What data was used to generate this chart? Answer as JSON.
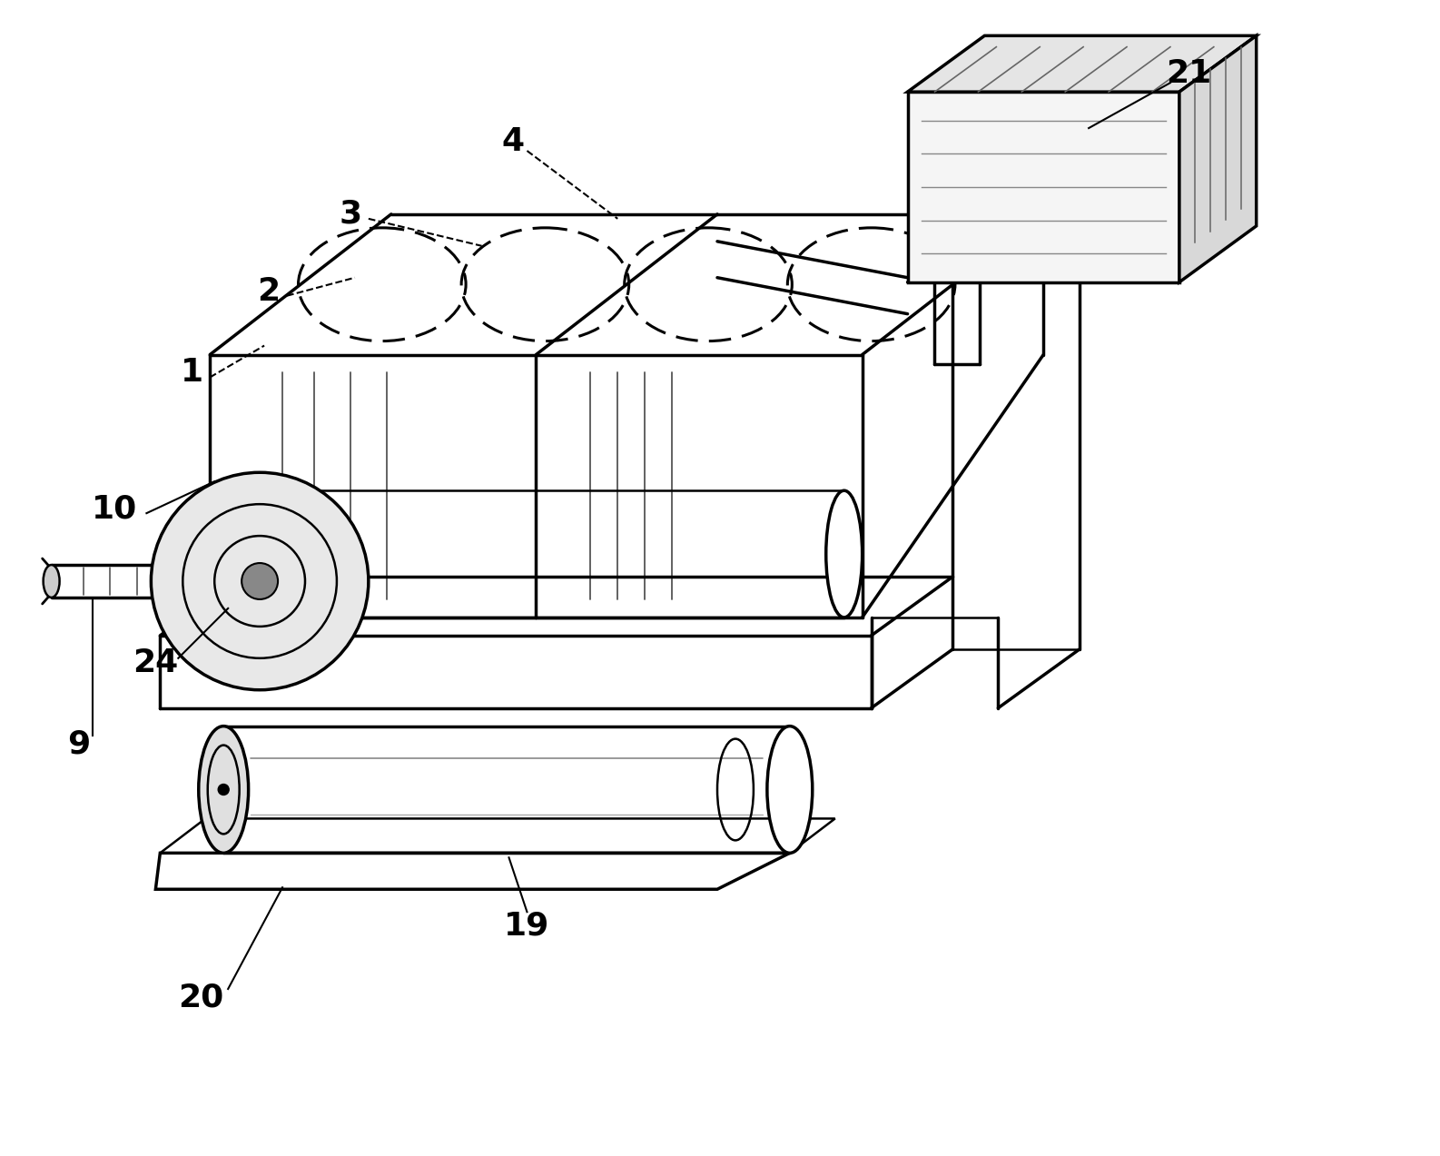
{
  "background_color": "#ffffff",
  "line_color": "#000000",
  "label_color": "#000000",
  "label_fontsize": 26,
  "figsize": [
    15.86,
    12.73
  ],
  "dpi": 100
}
